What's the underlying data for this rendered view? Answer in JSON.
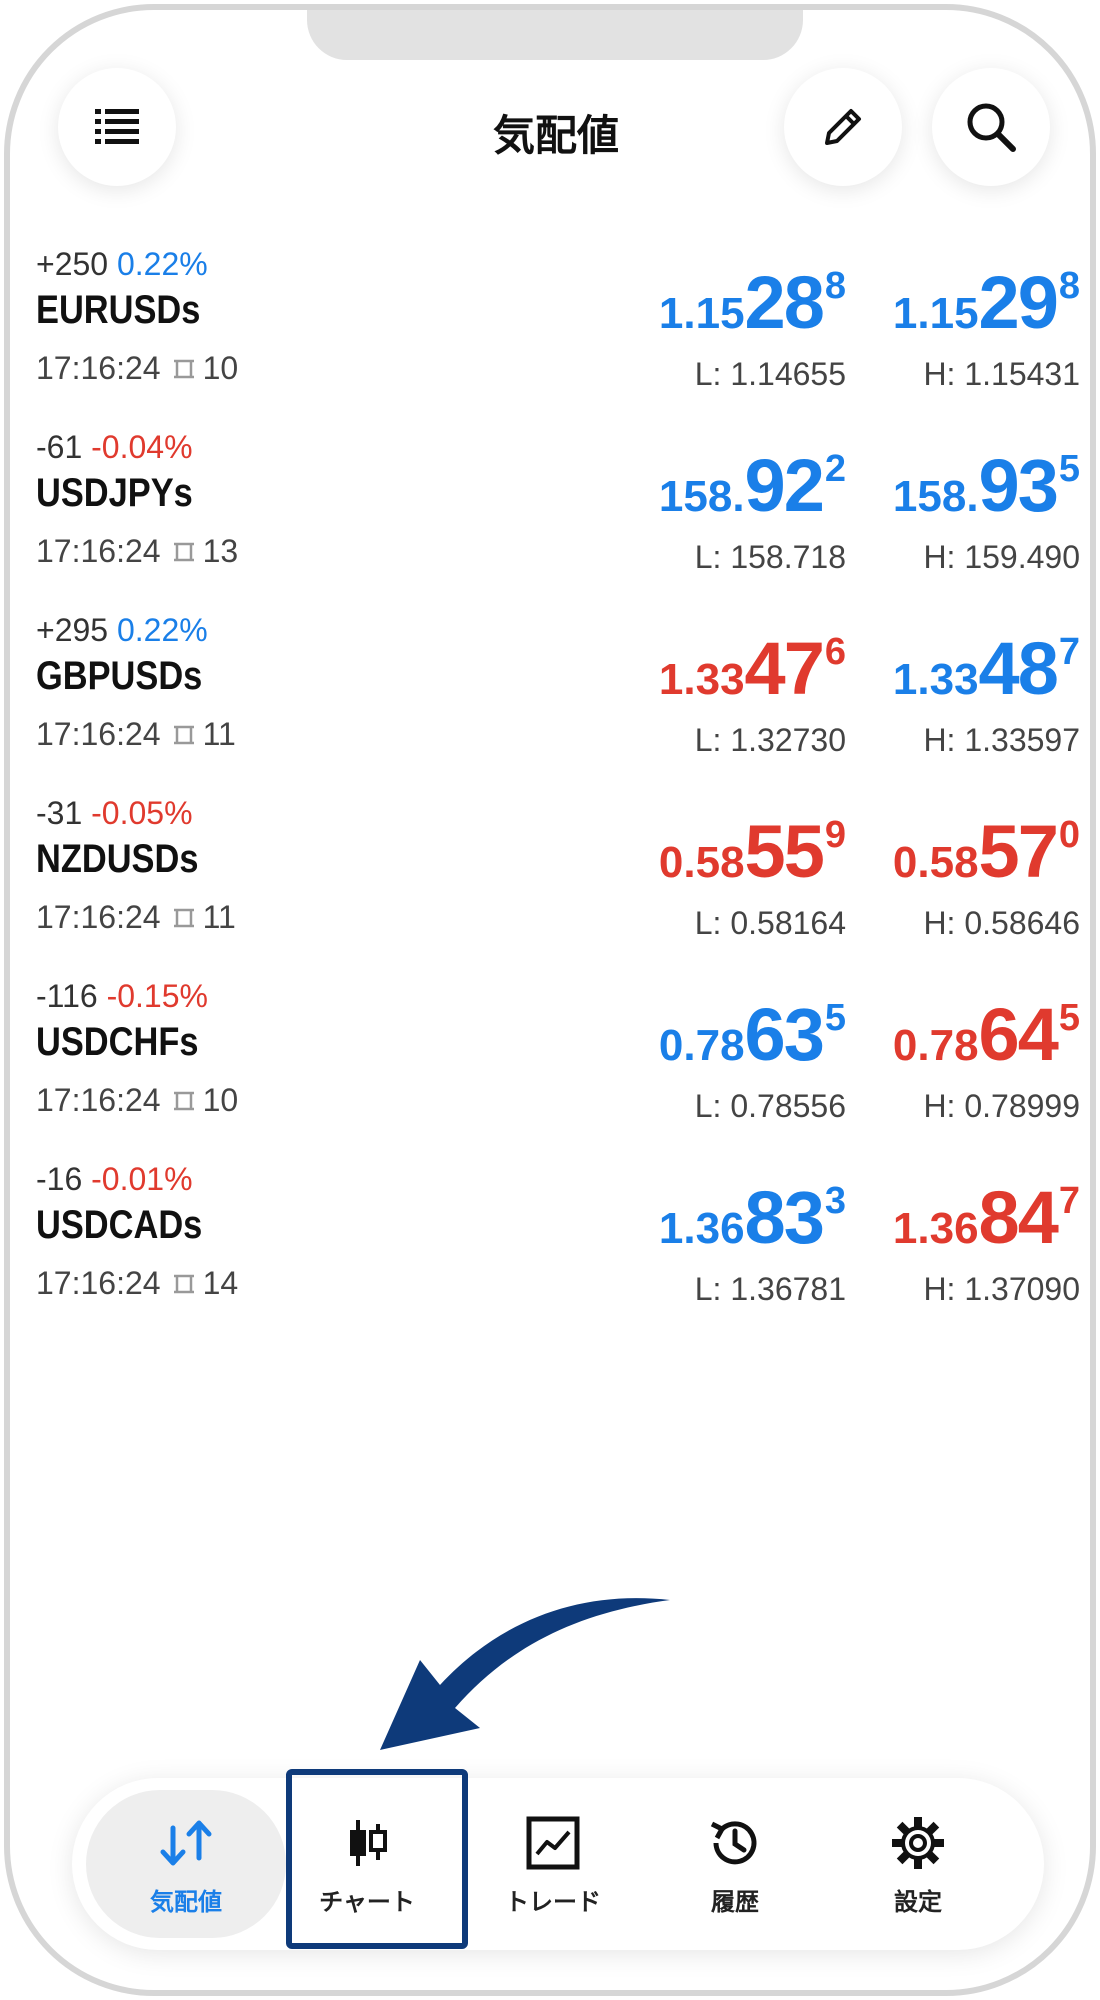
{
  "header": {
    "title": "気配値",
    "menu_icon": "list-icon",
    "edit_icon": "pencil-icon",
    "search_icon": "search-icon"
  },
  "colors": {
    "up": "#1a7fe8",
    "down": "#e03a2e",
    "highlight": "#0e3a7a"
  },
  "quotes": [
    {
      "change_points": "+250",
      "change_pct": "0.22%",
      "pct_dir": "up",
      "symbol": "EURUSDs",
      "time": "17:16:24",
      "spread": "10",
      "bid": {
        "small": "1.15",
        "big": "28",
        "sup": "8",
        "dir": "up"
      },
      "ask": {
        "small": "1.15",
        "big": "29",
        "sup": "8",
        "dir": "up"
      },
      "low": "L: 1.14655",
      "high": "H: 1.15431"
    },
    {
      "change_points": "-61",
      "change_pct": "-0.04%",
      "pct_dir": "down",
      "symbol": "USDJPYs",
      "time": "17:16:24",
      "spread": "13",
      "bid": {
        "small": "158.",
        "big": "92",
        "sup": "2",
        "dir": "up"
      },
      "ask": {
        "small": "158.",
        "big": "93",
        "sup": "5",
        "dir": "up"
      },
      "low": "L: 158.718",
      "high": "H: 159.490"
    },
    {
      "change_points": "+295",
      "change_pct": "0.22%",
      "pct_dir": "up",
      "symbol": "GBPUSDs",
      "time": "17:16:24",
      "spread": "11",
      "bid": {
        "small": "1.33",
        "big": "47",
        "sup": "6",
        "dir": "down"
      },
      "ask": {
        "small": "1.33",
        "big": "48",
        "sup": "7",
        "dir": "up"
      },
      "low": "L: 1.32730",
      "high": "H: 1.33597"
    },
    {
      "change_points": "-31",
      "change_pct": "-0.05%",
      "pct_dir": "down",
      "symbol": "NZDUSDs",
      "time": "17:16:24",
      "spread": "11",
      "bid": {
        "small": "0.58",
        "big": "55",
        "sup": "9",
        "dir": "down"
      },
      "ask": {
        "small": "0.58",
        "big": "57",
        "sup": "0",
        "dir": "down"
      },
      "low": "L: 0.58164",
      "high": "H: 0.58646"
    },
    {
      "change_points": "-116",
      "change_pct": "-0.15%",
      "pct_dir": "down",
      "symbol": "USDCHFs",
      "time": "17:16:24",
      "spread": "10",
      "bid": {
        "small": "0.78",
        "big": "63",
        "sup": "5",
        "dir": "up"
      },
      "ask": {
        "small": "0.78",
        "big": "64",
        "sup": "5",
        "dir": "down"
      },
      "low": "L: 0.78556",
      "high": "H: 0.78999"
    },
    {
      "change_points": "-16",
      "change_pct": "-0.01%",
      "pct_dir": "down",
      "symbol": "USDCADs",
      "time": "17:16:24",
      "spread": "14",
      "bid": {
        "small": "1.36",
        "big": "83",
        "sup": "3",
        "dir": "up"
      },
      "ask": {
        "small": "1.36",
        "big": "84",
        "sup": "7",
        "dir": "down"
      },
      "low": "L: 1.36781",
      "high": "H: 1.37090"
    }
  ],
  "bottom_nav": {
    "items": [
      {
        "label": "気配値",
        "icon": "quotes-arrows-icon",
        "active": true
      },
      {
        "label": "チャート",
        "icon": "candlestick-icon",
        "active": false
      },
      {
        "label": "トレード",
        "icon": "trade-chart-icon",
        "active": false
      },
      {
        "label": "履歴",
        "icon": "history-icon",
        "active": false
      },
      {
        "label": "設定",
        "icon": "gear-icon",
        "active": false
      }
    ]
  }
}
